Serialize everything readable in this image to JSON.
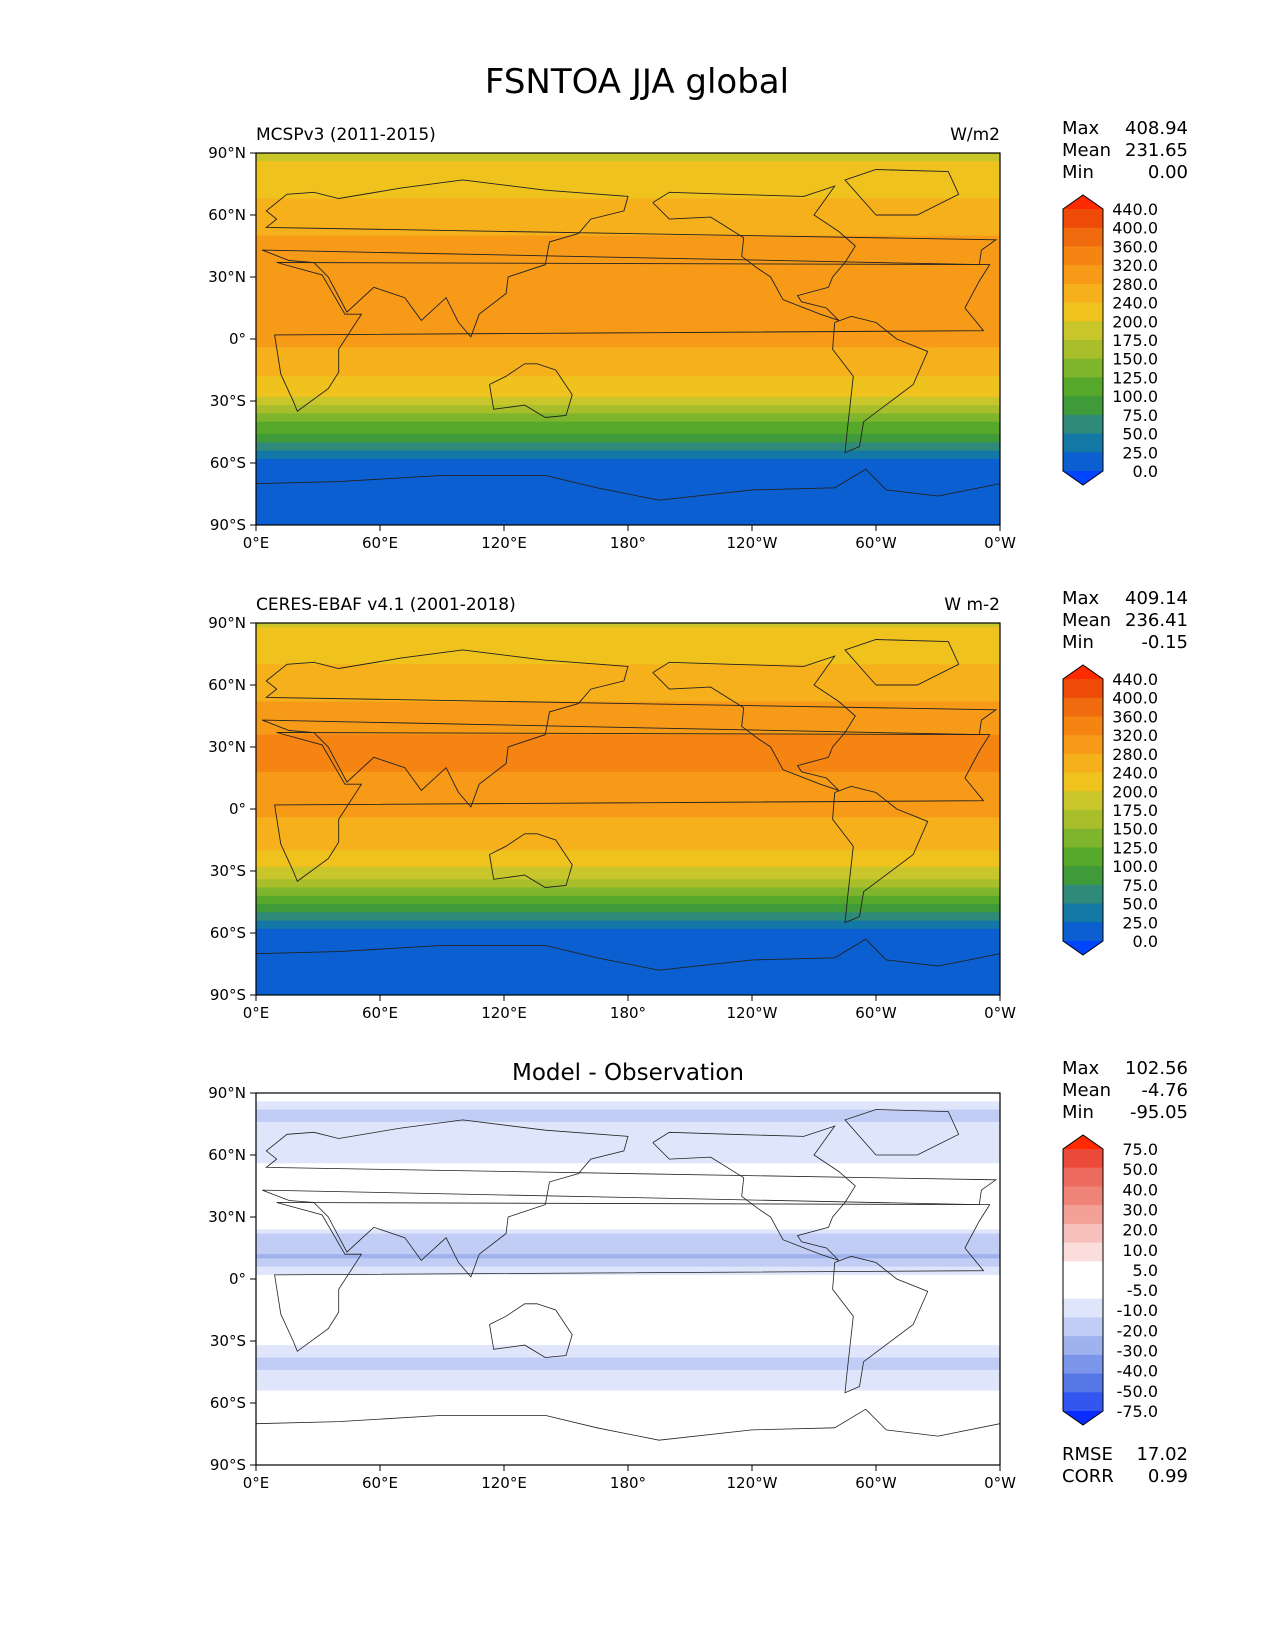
{
  "figure": {
    "title": "FSNTOA JJA global"
  },
  "axes": {
    "lat_ticks": [
      {
        "value": 90,
        "label": "90°N"
      },
      {
        "value": 60,
        "label": "60°N"
      },
      {
        "value": 30,
        "label": "30°N"
      },
      {
        "value": 0,
        "label": "0°"
      },
      {
        "value": -30,
        "label": "30°S"
      },
      {
        "value": -60,
        "label": "60°S"
      },
      {
        "value": -90,
        "label": "90°S"
      }
    ],
    "lon_ticks": [
      {
        "value": 0,
        "label": "0°E"
      },
      {
        "value": 60,
        "label": "60°E"
      },
      {
        "value": 120,
        "label": "120°E"
      },
      {
        "value": 180,
        "label": "180°"
      },
      {
        "value": 240,
        "label": "120°W"
      },
      {
        "value": 300,
        "label": "60°W"
      },
      {
        "value": 360,
        "label": "0°W"
      }
    ],
    "lon_range": [
      0,
      360
    ],
    "lat_range": [
      -90,
      90
    ]
  },
  "colors": {
    "abs_fills": [
      "#0044ff",
      "#0b5fd0",
      "#1478a6",
      "#2f8a7a",
      "#3f9a3a",
      "#56a82a",
      "#7eb52c",
      "#a9be2b",
      "#c8c62a",
      "#efc21e",
      "#f5b01c",
      "#f79a18",
      "#f58412",
      "#f06a0e",
      "#ee4a08",
      "#ff2a00"
    ],
    "diff_fills": [
      "#0a2cff",
      "#3356f0",
      "#5577e6",
      "#7b95ea",
      "#9fb2ee",
      "#c1cdf4",
      "#dfe6fb",
      "#ffffff",
      "#ffffff",
      "#fbdedb",
      "#f7c0ba",
      "#f3a097",
      "#f08378",
      "#ec6a5e",
      "#eb4a3a",
      "#ff2a00"
    ]
  },
  "chart_data": [
    {
      "type": "heatmap",
      "panel": "model",
      "title": "MCSPv3 (2011-2015)",
      "units": "W/m2",
      "stats": [
        {
          "label": "Max",
          "value": "408.94"
        },
        {
          "label": "Mean",
          "value": "231.65"
        },
        {
          "label": "Min",
          "value": "0.00"
        }
      ],
      "colorbar_levels": [
        0,
        25,
        50,
        75,
        100,
        125,
        150,
        175,
        200,
        240,
        280,
        320,
        360,
        400,
        440
      ],
      "colorbar_labels": [
        "440.0",
        "400.0",
        "360.0",
        "320.0",
        "280.0",
        "240.0",
        "200.0",
        "175.0",
        "150.0",
        "125.0",
        "100.0",
        "75.0",
        "50.0",
        "25.0",
        "0.0"
      ],
      "zonal_profile": [
        {
          "lat": 90,
          "value": 195
        },
        {
          "lat": 80,
          "value": 210
        },
        {
          "lat": 70,
          "value": 235
        },
        {
          "lat": 60,
          "value": 255
        },
        {
          "lat": 50,
          "value": 280
        },
        {
          "lat": 40,
          "value": 305
        },
        {
          "lat": 30,
          "value": 320
        },
        {
          "lat": 20,
          "value": 315
        },
        {
          "lat": 10,
          "value": 290
        },
        {
          "lat": 0,
          "value": 285
        },
        {
          "lat": -10,
          "value": 270
        },
        {
          "lat": -20,
          "value": 235
        },
        {
          "lat": -30,
          "value": 190
        },
        {
          "lat": -40,
          "value": 130
        },
        {
          "lat": -50,
          "value": 70
        },
        {
          "lat": -60,
          "value": 15
        },
        {
          "lat": -70,
          "value": 2
        },
        {
          "lat": -80,
          "value": 0
        },
        {
          "lat": -90,
          "value": 0
        }
      ]
    },
    {
      "type": "heatmap",
      "panel": "observation",
      "title": "CERES-EBAF v4.1 (2001-2018)",
      "units": "W m-2",
      "stats": [
        {
          "label": "Max",
          "value": "409.14"
        },
        {
          "label": "Mean",
          "value": "236.41"
        },
        {
          "label": "Min",
          "value": "-0.15"
        }
      ],
      "colorbar_levels": [
        0,
        25,
        50,
        75,
        100,
        125,
        150,
        175,
        200,
        240,
        280,
        320,
        360,
        400,
        440
      ],
      "colorbar_labels": [
        "440.0",
        "400.0",
        "360.0",
        "320.0",
        "280.0",
        "240.0",
        "200.0",
        "175.0",
        "150.0",
        "125.0",
        "100.0",
        "75.0",
        "50.0",
        "25.0",
        "0.0"
      ],
      "zonal_profile": [
        {
          "lat": 90,
          "value": 195
        },
        {
          "lat": 80,
          "value": 212
        },
        {
          "lat": 70,
          "value": 240
        },
        {
          "lat": 60,
          "value": 262
        },
        {
          "lat": 50,
          "value": 285
        },
        {
          "lat": 40,
          "value": 310
        },
        {
          "lat": 30,
          "value": 330
        },
        {
          "lat": 20,
          "value": 325
        },
        {
          "lat": 10,
          "value": 300
        },
        {
          "lat": 0,
          "value": 285
        },
        {
          "lat": -10,
          "value": 272
        },
        {
          "lat": -20,
          "value": 240
        },
        {
          "lat": -30,
          "value": 195
        },
        {
          "lat": -40,
          "value": 135
        },
        {
          "lat": -50,
          "value": 75
        },
        {
          "lat": -60,
          "value": 18
        },
        {
          "lat": -70,
          "value": 2
        },
        {
          "lat": -80,
          "value": 0
        },
        {
          "lat": -90,
          "value": 0
        }
      ]
    },
    {
      "type": "heatmap",
      "panel": "difference",
      "title": "Model - Observation",
      "units": "",
      "stats": [
        {
          "label": "Max",
          "value": "102.56"
        },
        {
          "label": "Mean",
          "value": "-4.76"
        },
        {
          "label": "Min",
          "value": "-95.05"
        }
      ],
      "colorbar_levels": [
        -75,
        -50,
        -40,
        -30,
        -20,
        -10,
        -5,
        5,
        10,
        20,
        30,
        40,
        50,
        75
      ],
      "colorbar_labels": [
        "75.0",
        "50.0",
        "40.0",
        "30.0",
        "20.0",
        "10.0",
        "5.0",
        "-5.0",
        "-10.0",
        "-20.0",
        "-30.0",
        "-40.0",
        "-50.0",
        "-75.0"
      ],
      "metrics": [
        {
          "label": "RMSE",
          "value": "17.02"
        },
        {
          "label": "CORR",
          "value": "0.99"
        }
      ],
      "zonal_profile": [
        {
          "lat": 90,
          "value": 0
        },
        {
          "lat": 80,
          "value": -12
        },
        {
          "lat": 70,
          "value": -8
        },
        {
          "lat": 60,
          "value": -10
        },
        {
          "lat": 50,
          "value": 4
        },
        {
          "lat": 40,
          "value": 6
        },
        {
          "lat": 30,
          "value": 8
        },
        {
          "lat": 20,
          "value": -14
        },
        {
          "lat": 10,
          "value": -22
        },
        {
          "lat": 0,
          "value": 2
        },
        {
          "lat": -10,
          "value": 6
        },
        {
          "lat": -20,
          "value": -2
        },
        {
          "lat": -30,
          "value": -4
        },
        {
          "lat": -40,
          "value": -12
        },
        {
          "lat": -50,
          "value": -8
        },
        {
          "lat": -60,
          "value": 0
        },
        {
          "lat": -70,
          "value": 0
        },
        {
          "lat": -80,
          "value": 0
        },
        {
          "lat": -90,
          "value": 0
        }
      ]
    }
  ]
}
